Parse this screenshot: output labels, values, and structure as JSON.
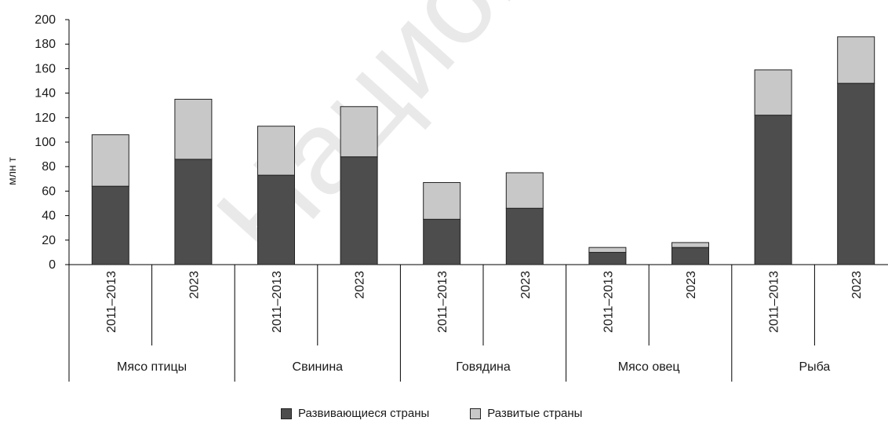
{
  "chart_data": {
    "type": "bar",
    "stacked": true,
    "ylabel": "млн т",
    "ylim": [
      0,
      200
    ],
    "yticks": [
      0,
      20,
      40,
      60,
      80,
      100,
      120,
      140,
      160,
      180,
      200
    ],
    "grid": false,
    "legend_position": "bottom",
    "groups": [
      "Мясо птицы",
      "Свинина",
      "Говядина",
      "Мясо овец",
      "Рыба"
    ],
    "periods": [
      "2011–2013",
      "2023"
    ],
    "categories": [
      "Мясо птицы 2011–2013",
      "Мясо птицы 2023",
      "Свинина 2011–2013",
      "Свинина 2023",
      "Говядина 2011–2013",
      "Говядина 2023",
      "Мясо овец 2011–2013",
      "Мясо овец 2023",
      "Рыба 2011–2013",
      "Рыба 2023"
    ],
    "series": [
      {
        "name": "Развивающиеся страны",
        "color": "#4d4d4d",
        "values": [
          64,
          86,
          73,
          88,
          37,
          46,
          10,
          14,
          122,
          148
        ]
      },
      {
        "name": "Развитые страны",
        "color": "#c8c8c8",
        "values": [
          42,
          49,
          40,
          41,
          30,
          29,
          4,
          4,
          37,
          38
        ]
      }
    ]
  },
  "watermark": {
    "text": "Национальная",
    "color": "#e9e9e9"
  }
}
